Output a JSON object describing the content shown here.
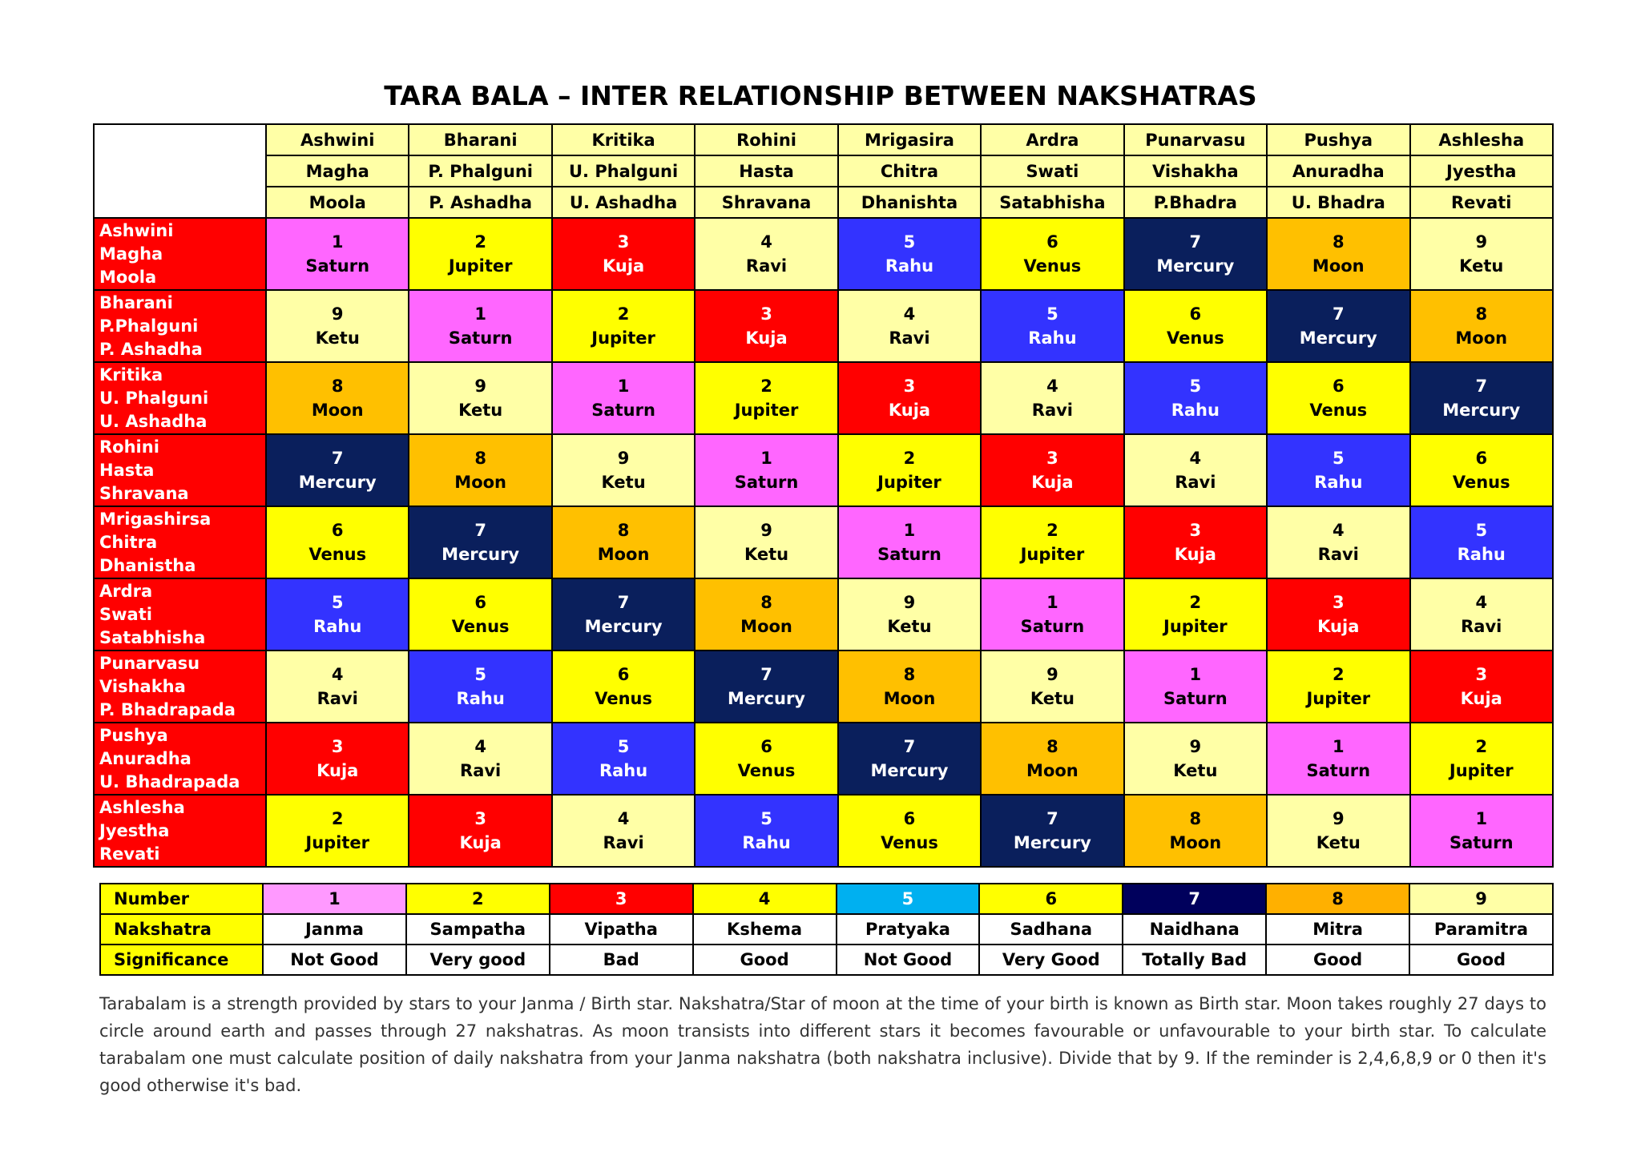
{
  "title": "TARA BALA – INTER RELATIONSHIP BETWEEN NAKSHATRAS",
  "colors": {
    "1": "#ff66ff",
    "2": "#ffff00",
    "3": "#ff0000",
    "4": "#ffffa6",
    "5": "#3333ff",
    "6": "#ffff00",
    "7": "#0a1f5c",
    "8": "#ffc000",
    "9": "#ffffa6"
  },
  "text_colors": {
    "1": "#000000",
    "2": "#000000",
    "3": "#ffffff",
    "4": "#000000",
    "5": "#ffffff",
    "6": "#000000",
    "7": "#ffffff",
    "8": "#000000",
    "9": "#000000"
  },
  "planets": {
    "1": "Saturn",
    "2": "Jupiter",
    "3": "Kuja",
    "4": "Ravi",
    "5": "Rahu",
    "6": "Venus",
    "7": "Mercury",
    "8": "Moon",
    "9": "Ketu"
  },
  "columns": [
    [
      "Ashwini",
      "Magha",
      "Moola"
    ],
    [
      "Bharani",
      "P. Phalguni",
      "P. Ashadha"
    ],
    [
      "Kritika",
      "U. Phalguni",
      "U. Ashadha"
    ],
    [
      "Rohini",
      "Hasta",
      "Shravana"
    ],
    [
      "Mrigasira",
      "Chitra",
      "Dhanishta"
    ],
    [
      "Ardra",
      "Swati",
      "Satabhisha"
    ],
    [
      "Punarvasu",
      "Vishakha",
      "P.Bhadra"
    ],
    [
      "Pushya",
      "Anuradha",
      "U. Bhadra"
    ],
    [
      "Ashlesha",
      "Jyestha",
      "Revati"
    ]
  ],
  "rows": [
    {
      "names": [
        "Ashwini",
        "Magha",
        "Moola"
      ],
      "values": [
        1,
        2,
        3,
        4,
        5,
        6,
        7,
        8,
        9
      ]
    },
    {
      "names": [
        "Bharani",
        "P.Phalguni",
        "P. Ashadha"
      ],
      "values": [
        9,
        1,
        2,
        3,
        4,
        5,
        6,
        7,
        8
      ]
    },
    {
      "names": [
        "Kritika",
        "U. Phalguni",
        "U. Ashadha"
      ],
      "values": [
        8,
        9,
        1,
        2,
        3,
        4,
        5,
        6,
        7
      ]
    },
    {
      "names": [
        "Rohini",
        "Hasta",
        "Shravana"
      ],
      "values": [
        7,
        8,
        9,
        1,
        2,
        3,
        4,
        5,
        6
      ]
    },
    {
      "names": [
        "Mrigashirsa",
        "Chitra",
        "Dhanistha"
      ],
      "values": [
        6,
        7,
        8,
        9,
        1,
        2,
        3,
        4,
        5
      ]
    },
    {
      "names": [
        "Ardra",
        "Swati",
        "Satabhisha"
      ],
      "values": [
        5,
        6,
        7,
        8,
        9,
        1,
        2,
        3,
        4
      ]
    },
    {
      "names": [
        "Punarvasu",
        "Vishakha",
        "P. Bhadrapada"
      ],
      "values": [
        4,
        5,
        6,
        7,
        8,
        9,
        1,
        2,
        3
      ]
    },
    {
      "names": [
        "Pushya",
        "Anuradha",
        "U. Bhadrapada"
      ],
      "values": [
        3,
        4,
        5,
        6,
        7,
        8,
        9,
        1,
        2
      ]
    },
    {
      "names": [
        "Ashlesha",
        "Jyestha",
        "Revati"
      ],
      "values": [
        2,
        3,
        4,
        5,
        6,
        7,
        8,
        9,
        1
      ]
    }
  ],
  "legend": {
    "row_labels": [
      "Number",
      "Nakshatra",
      "Significance"
    ],
    "number_colors": [
      "#ff99ff",
      "#ffff00",
      "#ff0000",
      "#ffff00",
      "#00b0f0",
      "#ffff00",
      "#00005c",
      "#ffb000",
      "#ffffa6"
    ],
    "number_text_colors": [
      "#000000",
      "#000000",
      "#ffffff",
      "#000000",
      "#ffffff",
      "#000000",
      "#ffffff",
      "#000000",
      "#000000"
    ],
    "numbers": [
      "1",
      "2",
      "3",
      "4",
      "5",
      "6",
      "7",
      "8",
      "9"
    ],
    "nakshatras": [
      "Janma",
      "Sampatha",
      "Vipatha",
      "Kshema",
      "Pratyaka",
      "Sadhana",
      "Naidhana",
      "Mitra",
      "Paramitra"
    ],
    "significance": [
      "Not Good",
      "Very good",
      "Bad",
      "Good",
      "Not Good",
      "Very Good",
      "Totally Bad",
      "Good",
      "Good"
    ]
  },
  "note": "Tarabalam is a strength provided by stars to your Janma / Birth star. Nakshatra/Star of moon at the time of your birth is known as Birth star. Moon takes roughly 27 days to circle around earth and passes through 27 nakshatras. As moon transists into different stars it becomes favourable or unfavourable to your birth star. To calculate tarabalam one must calculate position of daily nakshatra from your Janma nakshatra (both nakshatra inclusive). Divide that by 9. If the reminder is 2,4,6,8,9 or 0 then it's good otherwise it's bad."
}
